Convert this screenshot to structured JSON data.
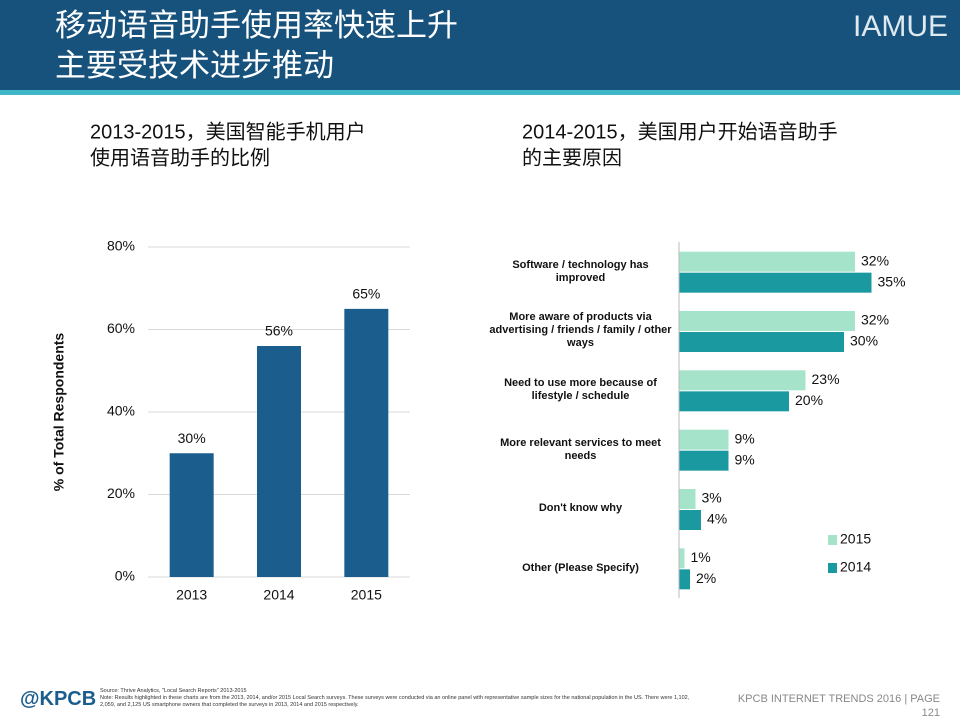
{
  "header": {
    "title": [
      "移动语音助手使用率快速上升",
      "主要受技术进步推动"
    ],
    "brand": "IAMUE"
  },
  "footer": {
    "logo": "@KPCB",
    "source": "Source: Thrive Analytics, \"Local Search Reports\" 2013-2015",
    "note": "Note: Results highlighted in these charts are from the 2013, 2014, and/or 2015 Local Search surveys. These surveys were conducted via an online panel with representative sample sizes for the national population in the US. There were 1,102, 2,059, and 2,125 US smartphone owners that completed the surveys in 2013, 2014 and 2015 respectively.",
    "page": "KPCB INTERNET TRENDS 2016  |  PAGE 121"
  },
  "chart_data": [
    {
      "type": "bar",
      "title": [
        "2013-2015，美国智能手机用户",
        "使用语音助手的比例"
      ],
      "y_label": "% of Total Respondents",
      "categories": [
        "2013",
        "2014",
        "2015"
      ],
      "values": [
        30,
        56,
        65
      ],
      "value_labels": [
        "30%",
        "56%",
        "65%"
      ],
      "color": "#1b5e8e",
      "ylim": [
        0,
        80
      ],
      "yticks": [
        {
          "value": 0,
          "label": "0%"
        },
        {
          "value": 20,
          "label": "20%"
        },
        {
          "value": 40,
          "label": "40%"
        },
        {
          "value": 60,
          "label": "60%"
        },
        {
          "value": 80,
          "label": "80%"
        }
      ],
      "grid": true
    },
    {
      "type": "barh",
      "title": [
        "2014-2015，美国用户开始语音助手",
        "的主要原因"
      ],
      "categories": [
        "Software / technology has improved",
        "More aware of products via advertising / friends / family / other ways",
        "Need to use more because of lifestyle / schedule",
        "More relevant services to meet needs",
        "Don't know why",
        "Other (Please Specify)"
      ],
      "series": [
        {
          "name": "2015",
          "color": "#a6e3cb",
          "values": [
            32,
            32,
            23,
            9,
            3,
            1
          ],
          "value_labels": [
            "32%",
            "32%",
            "23%",
            "9%",
            "3%",
            "1%"
          ]
        },
        {
          "name": "2014",
          "color": "#1a9aa0",
          "values": [
            35,
            30,
            20,
            9,
            4,
            2
          ],
          "value_labels": [
            "35%",
            "30%",
            "20%",
            "9%",
            "4%",
            "2%"
          ]
        }
      ],
      "xlim": [
        0,
        40
      ],
      "legend": "lower-right"
    }
  ]
}
